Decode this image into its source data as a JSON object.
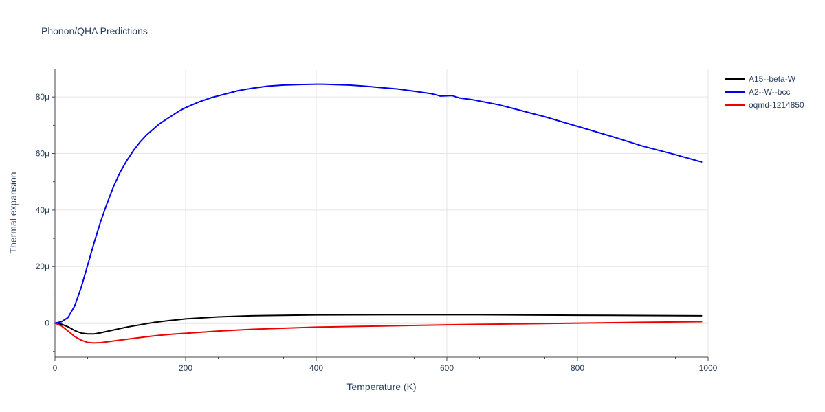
{
  "chart_data": {
    "type": "line",
    "title": "Phonon/QHA Predictions",
    "xlabel": "Temperature (K)",
    "ylabel": "Thermal expansion",
    "xlim": [
      0,
      1000
    ],
    "ylim": [
      -12,
      90
    ],
    "xticks": [
      0,
      200,
      400,
      600,
      800,
      1000
    ],
    "xtick_labels": [
      "0",
      "200",
      "400",
      "600",
      "800",
      "1000"
    ],
    "yticks": [
      0,
      20,
      40,
      60,
      80
    ],
    "ytick_labels": [
      "0",
      "20μ",
      "40μ",
      "60μ",
      "80μ"
    ],
    "grid": true,
    "legend_position": "top-right",
    "series": [
      {
        "name": "A15--beta-W",
        "color": "#000000",
        "x": [
          0,
          10,
          20,
          30,
          40,
          50,
          60,
          70,
          80,
          90,
          100,
          110,
          120,
          130,
          140,
          150,
          175,
          200,
          250,
          300,
          400,
          500,
          600,
          650,
          700,
          800,
          900,
          990
        ],
        "y": [
          0,
          -0.4,
          -1.3,
          -2.6,
          -3.5,
          -3.8,
          -3.8,
          -3.4,
          -2.9,
          -2.4,
          -1.9,
          -1.4,
          -1.0,
          -0.6,
          -0.2,
          0.2,
          0.9,
          1.5,
          2.2,
          2.6,
          2.9,
          2.95,
          2.95,
          2.95,
          2.9,
          2.8,
          2.7,
          2.6
        ]
      },
      {
        "name": "A2--W--bcc",
        "color": "#0000ee",
        "x": [
          0,
          10,
          20,
          30,
          40,
          50,
          60,
          70,
          80,
          90,
          100,
          110,
          120,
          130,
          140,
          150,
          160,
          170,
          180,
          190,
          200,
          220,
          240,
          260,
          280,
          300,
          325,
          350,
          375,
          400,
          410,
          425,
          450,
          475,
          500,
          525,
          550,
          575,
          583,
          590,
          600,
          608,
          612,
          620,
          640,
          660,
          680,
          700,
          750,
          800,
          850,
          900,
          950,
          990
        ],
        "y": [
          0,
          0.5,
          2.0,
          6.0,
          12.5,
          20.5,
          28.5,
          36.0,
          42.5,
          48.5,
          53.5,
          57.5,
          61.0,
          64.0,
          66.5,
          68.5,
          70.5,
          72.0,
          73.5,
          75.0,
          76.2,
          78.2,
          79.8,
          81.0,
          82.2,
          83.0,
          83.8,
          84.2,
          84.4,
          84.5,
          84.5,
          84.4,
          84.2,
          83.8,
          83.3,
          82.8,
          82.0,
          81.2,
          80.8,
          80.3,
          80.4,
          80.5,
          80.2,
          79.6,
          79.0,
          78.1,
          77.2,
          76.0,
          73.0,
          69.6,
          66.2,
          62.6,
          59.6,
          57.0
        ]
      },
      {
        "name": "oqmd-1214850",
        "color": "#ee0000",
        "x": [
          0,
          10,
          20,
          30,
          40,
          50,
          60,
          70,
          80,
          90,
          100,
          120,
          140,
          160,
          180,
          200,
          250,
          300,
          400,
          500,
          600,
          700,
          800,
          900,
          990
        ],
        "y": [
          0,
          -1.0,
          -2.8,
          -4.7,
          -6.0,
          -6.8,
          -7.0,
          -6.9,
          -6.6,
          -6.3,
          -6.0,
          -5.4,
          -4.8,
          -4.3,
          -3.9,
          -3.6,
          -2.8,
          -2.2,
          -1.4,
          -1.0,
          -0.6,
          -0.3,
          0.0,
          0.3,
          0.5
        ]
      }
    ]
  }
}
